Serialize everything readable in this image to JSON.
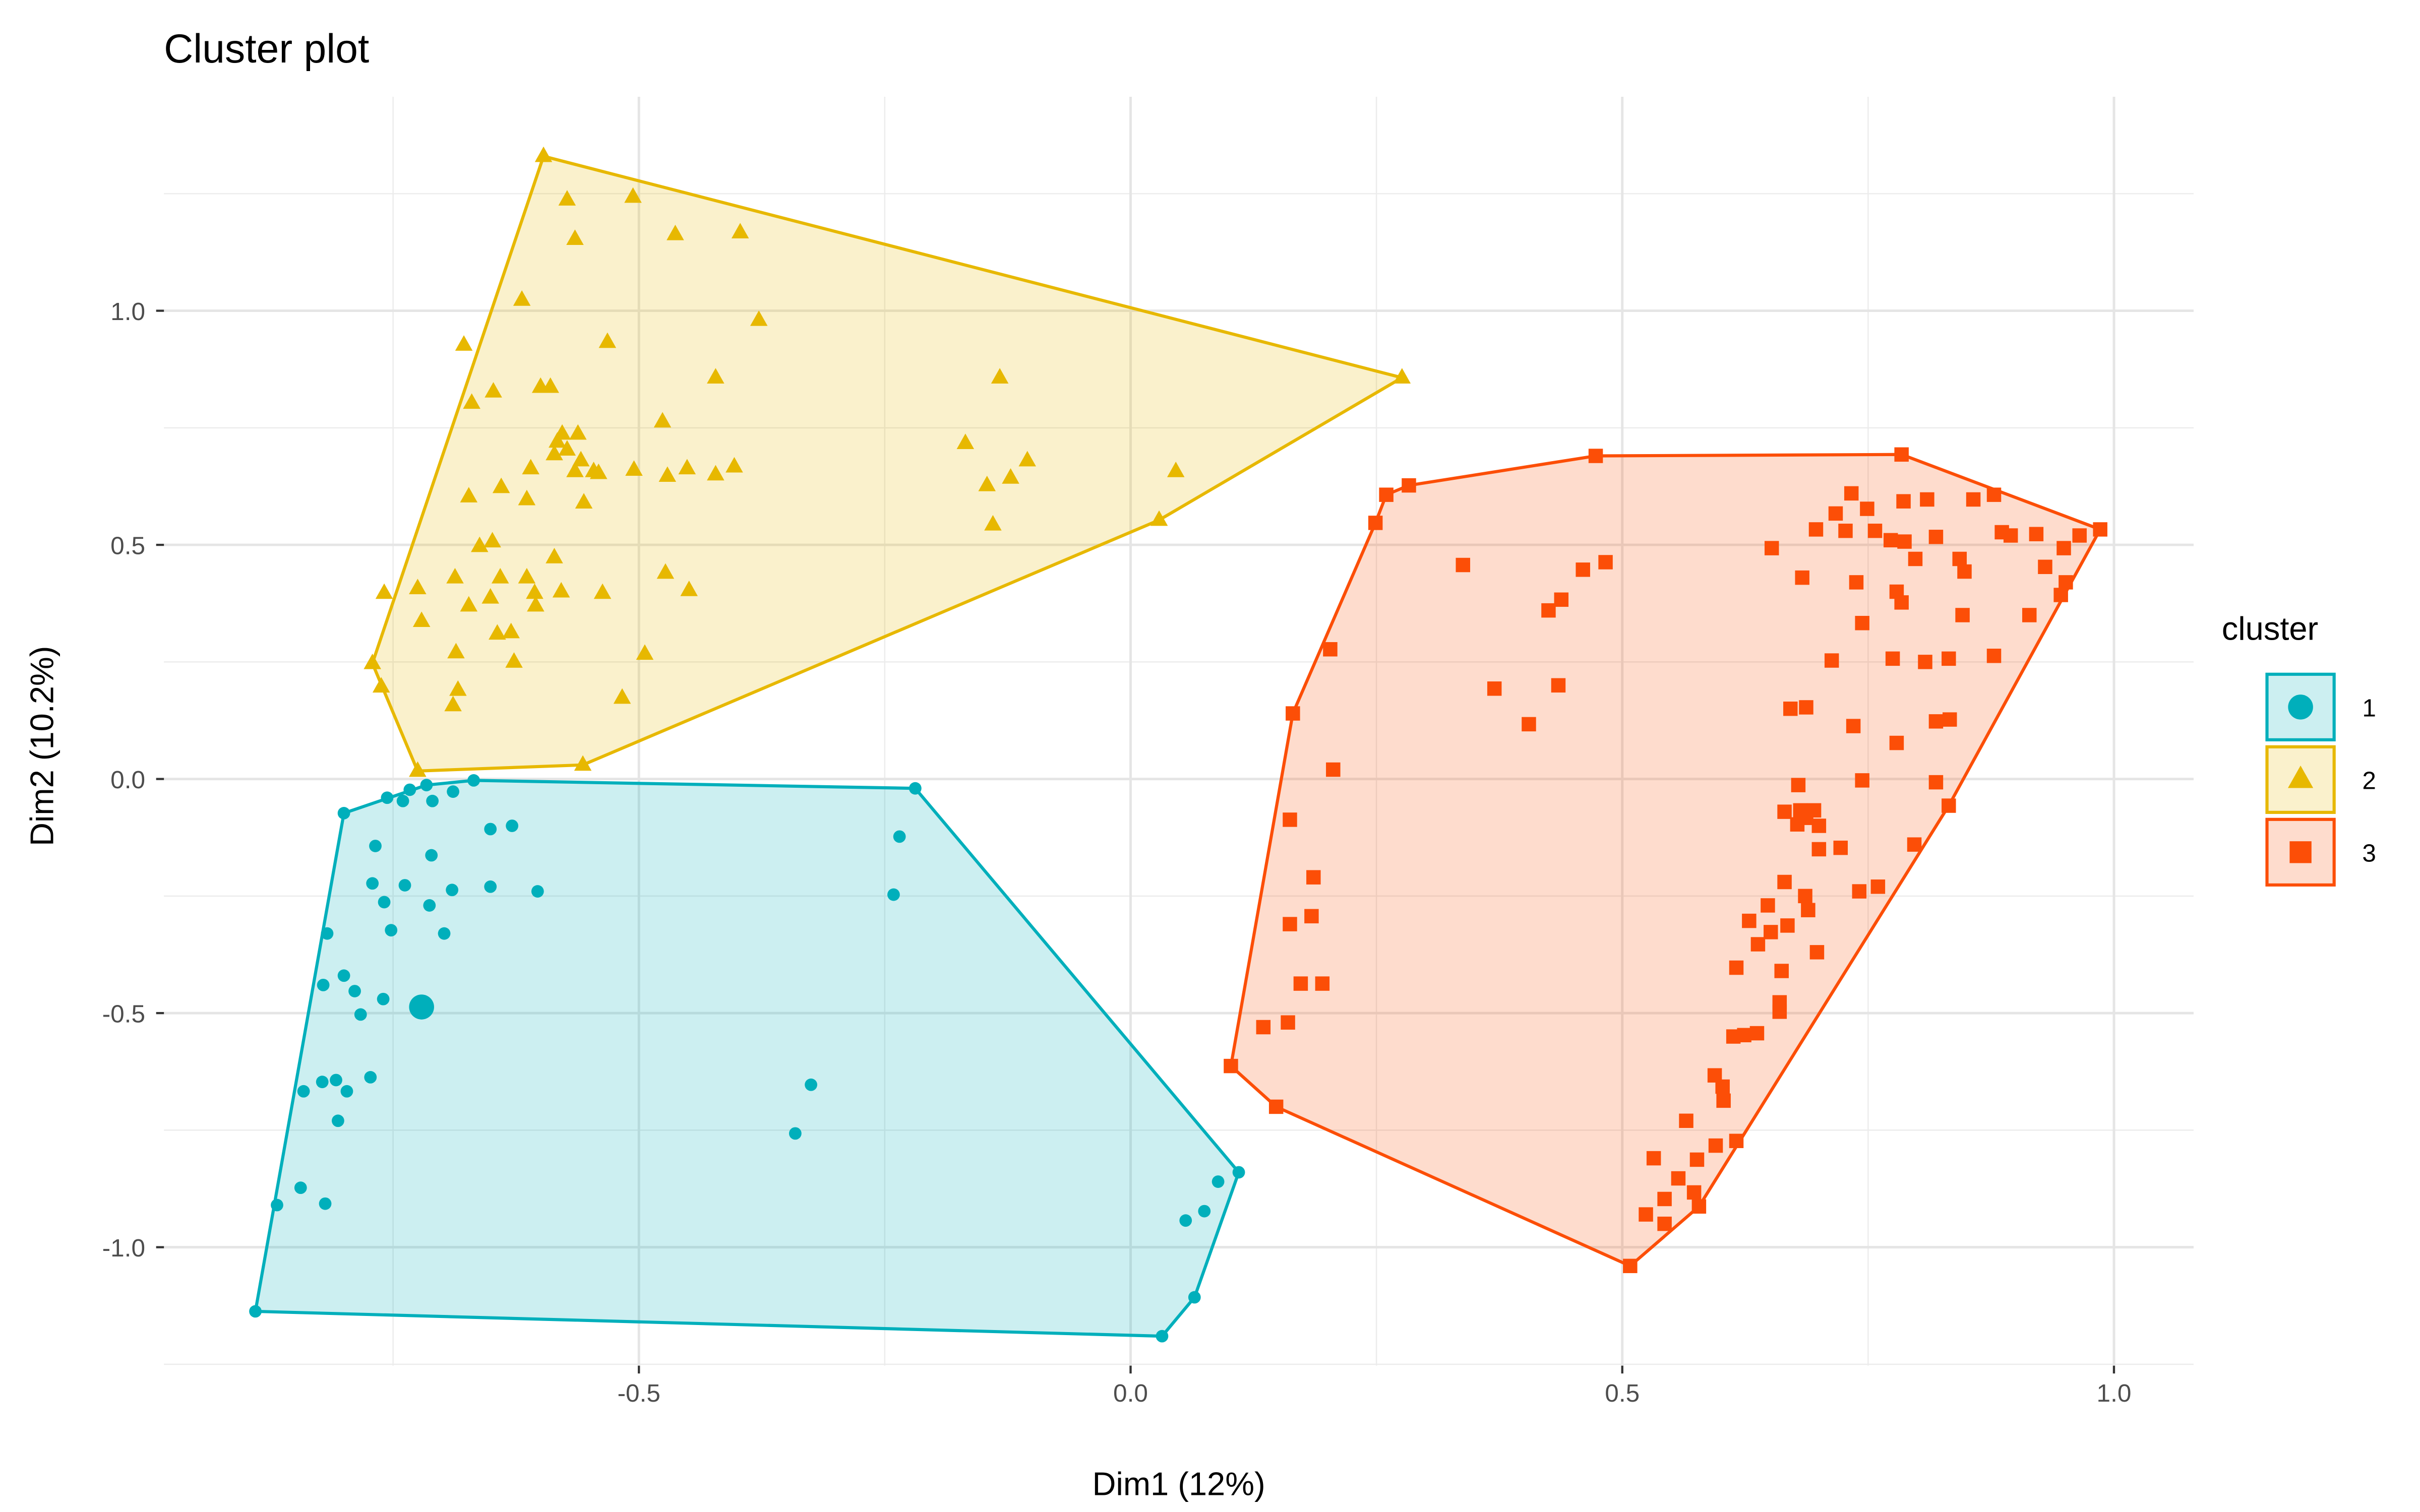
{
  "chart_data": {
    "type": "scatter",
    "title": "Cluster plot",
    "xlabel": "Dim1 (12%)",
    "ylabel": "Dim2 (10.2%)",
    "xlim": [
      -0.983,
      1.081
    ],
    "ylim": [
      -1.253,
      1.457
    ],
    "x_ticks": [
      {
        "value": -0.5,
        "label": "-0.5"
      },
      {
        "value": 0.0,
        "label": "0.0"
      },
      {
        "value": 0.5,
        "label": "0.5"
      },
      {
        "value": 1.0,
        "label": "1.0"
      }
    ],
    "y_ticks": [
      {
        "value": 1.0,
        "label": "1.0"
      },
      {
        "value": 0.5,
        "label": "0.5"
      },
      {
        "value": 0.0,
        "label": "0.0"
      },
      {
        "value": -0.5,
        "label": "-0.5"
      },
      {
        "value": -1.0,
        "label": "-1.0"
      }
    ],
    "grid": true,
    "legend": {
      "title": "cluster",
      "position": "right"
    },
    "series": [
      {
        "name": "1",
        "shape": "circle",
        "color": "#00AFBB",
        "medoid": [
          -0.721,
          -0.487
        ],
        "hull": [
          [
            -0.89,
            -1.137
          ],
          [
            -0.8,
            -0.073
          ],
          [
            -0.716,
            -0.013
          ],
          [
            -0.668,
            -0.003
          ],
          [
            -0.219,
            -0.02
          ],
          [
            0.11,
            -0.84
          ],
          [
            0.065,
            -1.107
          ],
          [
            0.032,
            -1.19
          ]
        ],
        "points": [
          [
            -0.89,
            -1.137
          ],
          [
            -0.8,
            -0.073
          ],
          [
            -0.716,
            -0.013
          ],
          [
            -0.668,
            -0.003
          ],
          [
            -0.219,
            -0.02
          ],
          [
            0.11,
            -0.84
          ],
          [
            0.065,
            -1.107
          ],
          [
            0.032,
            -1.19
          ],
          [
            -0.756,
            -0.04
          ],
          [
            -0.733,
            -0.023
          ],
          [
            -0.74,
            -0.047
          ],
          [
            -0.71,
            -0.047
          ],
          [
            -0.689,
            -0.027
          ],
          [
            -0.768,
            -0.143
          ],
          [
            -0.711,
            -0.163
          ],
          [
            -0.651,
            -0.107
          ],
          [
            -0.629,
            -0.1
          ],
          [
            -0.771,
            -0.223
          ],
          [
            -0.738,
            -0.227
          ],
          [
            -0.759,
            -0.263
          ],
          [
            -0.69,
            -0.237
          ],
          [
            -0.651,
            -0.23
          ],
          [
            -0.603,
            -0.24
          ],
          [
            -0.713,
            -0.27
          ],
          [
            -0.698,
            -0.33
          ],
          [
            -0.817,
            -0.33
          ],
          [
            -0.752,
            -0.323
          ],
          [
            -0.8,
            -0.42
          ],
          [
            -0.821,
            -0.44
          ],
          [
            -0.789,
            -0.453
          ],
          [
            -0.76,
            -0.47
          ],
          [
            -0.783,
            -0.503
          ],
          [
            -0.808,
            -0.643
          ],
          [
            -0.773,
            -0.637
          ],
          [
            -0.797,
            -0.667
          ],
          [
            -0.822,
            -0.647
          ],
          [
            -0.841,
            -0.667
          ],
          [
            -0.806,
            -0.73
          ],
          [
            -0.844,
            -0.873
          ],
          [
            -0.819,
            -0.907
          ],
          [
            -0.868,
            -0.91
          ],
          [
            -0.241,
            -0.247
          ],
          [
            -0.235,
            -0.123
          ],
          [
            -0.325,
            -0.653
          ],
          [
            -0.341,
            -0.757
          ],
          [
            0.089,
            -0.86
          ],
          [
            0.075,
            -0.923
          ],
          [
            0.056,
            -0.943
          ]
        ]
      },
      {
        "name": "2",
        "shape": "triangle",
        "color": "#E7B800",
        "hull": [
          [
            -0.771,
            0.247
          ],
          [
            -0.597,
            1.33
          ],
          [
            0.276,
            0.857
          ],
          [
            0.029,
            0.553
          ],
          [
            -0.557,
            0.03
          ],
          [
            -0.725,
            0.017
          ]
        ],
        "points": [
          [
            -0.771,
            0.247
          ],
          [
            -0.597,
            1.33
          ],
          [
            0.276,
            0.857
          ],
          [
            0.029,
            0.553
          ],
          [
            -0.557,
            0.03
          ],
          [
            -0.725,
            0.017
          ],
          [
            -0.573,
            1.237
          ],
          [
            -0.506,
            1.243
          ],
          [
            -0.565,
            1.153
          ],
          [
            -0.463,
            1.163
          ],
          [
            -0.397,
            1.167
          ],
          [
            -0.619,
            1.023
          ],
          [
            -0.378,
            0.98
          ],
          [
            -0.532,
            0.933
          ],
          [
            -0.678,
            0.927
          ],
          [
            -0.133,
            0.857
          ],
          [
            -0.422,
            0.857
          ],
          [
            -0.6,
            0.837
          ],
          [
            -0.648,
            0.827
          ],
          [
            -0.59,
            0.837
          ],
          [
            -0.67,
            0.803
          ],
          [
            -0.476,
            0.763
          ],
          [
            -0.578,
            0.737
          ],
          [
            -0.562,
            0.737
          ],
          [
            -0.583,
            0.72
          ],
          [
            -0.586,
            0.693
          ],
          [
            -0.573,
            0.703
          ],
          [
            -0.559,
            0.68
          ],
          [
            -0.61,
            0.663
          ],
          [
            -0.546,
            0.657
          ],
          [
            -0.505,
            0.66
          ],
          [
            -0.565,
            0.657
          ],
          [
            -0.541,
            0.653
          ],
          [
            -0.451,
            0.663
          ],
          [
            -0.422,
            0.65
          ],
          [
            -0.403,
            0.667
          ],
          [
            -0.168,
            0.717
          ],
          [
            -0.105,
            0.68
          ],
          [
            -0.122,
            0.643
          ],
          [
            -0.146,
            0.627
          ],
          [
            0.046,
            0.657
          ],
          [
            -0.471,
            0.647
          ],
          [
            -0.673,
            0.603
          ],
          [
            -0.64,
            0.623
          ],
          [
            -0.614,
            0.597
          ],
          [
            -0.556,
            0.59
          ],
          [
            -0.14,
            0.543
          ],
          [
            -0.662,
            0.497
          ],
          [
            -0.649,
            0.507
          ],
          [
            -0.687,
            0.43
          ],
          [
            -0.641,
            0.43
          ],
          [
            -0.586,
            0.473
          ],
          [
            -0.614,
            0.43
          ],
          [
            -0.605,
            0.37
          ],
          [
            -0.537,
            0.397
          ],
          [
            -0.673,
            0.37
          ],
          [
            -0.449,
            0.403
          ],
          [
            -0.651,
            0.387
          ],
          [
            -0.473,
            0.44
          ],
          [
            -0.759,
            0.397
          ],
          [
            -0.725,
            0.407
          ],
          [
            -0.721,
            0.337
          ],
          [
            -0.606,
            0.397
          ],
          [
            -0.579,
            0.4
          ],
          [
            -0.762,
            0.197
          ],
          [
            -0.686,
            0.27
          ],
          [
            -0.684,
            0.19
          ],
          [
            -0.627,
            0.25
          ],
          [
            -0.63,
            0.313
          ],
          [
            -0.517,
            0.173
          ],
          [
            -0.494,
            0.267
          ],
          [
            -0.689,
            0.157
          ],
          [
            -0.644,
            0.31
          ]
        ]
      },
      {
        "name": "3",
        "shape": "square",
        "color": "#FC4E07",
        "hull": [
          [
            0.102,
            -0.613
          ],
          [
            0.148,
            -0.7
          ],
          [
            0.508,
            -1.04
          ],
          [
            0.578,
            -0.913
          ],
          [
            0.832,
            -0.057
          ],
          [
            0.986,
            0.533
          ],
          [
            0.784,
            0.693
          ],
          [
            0.473,
            0.69
          ],
          [
            0.283,
            0.627
          ],
          [
            0.26,
            0.607
          ],
          [
            0.249,
            0.547
          ],
          [
            0.165,
            0.14
          ]
        ],
        "points": [
          [
            0.102,
            -0.613
          ],
          [
            0.148,
            -0.7
          ],
          [
            0.508,
            -1.04
          ],
          [
            0.578,
            -0.913
          ],
          [
            0.832,
            -0.057
          ],
          [
            0.986,
            0.533
          ],
          [
            0.784,
            0.693
          ],
          [
            0.473,
            0.69
          ],
          [
            0.283,
            0.627
          ],
          [
            0.26,
            0.607
          ],
          [
            0.249,
            0.547
          ],
          [
            0.165,
            0.14
          ],
          [
            0.338,
            0.457
          ],
          [
            0.438,
            0.383
          ],
          [
            0.46,
            0.447
          ],
          [
            0.425,
            0.36
          ],
          [
            0.483,
            0.463
          ],
          [
            0.37,
            0.193
          ],
          [
            0.405,
            0.117
          ],
          [
            0.435,
            0.2
          ],
          [
            0.203,
            0.277
          ],
          [
            0.206,
            0.02
          ],
          [
            0.162,
            -0.087
          ],
          [
            0.186,
            -0.21
          ],
          [
            0.184,
            -0.293
          ],
          [
            0.162,
            -0.31
          ],
          [
            0.173,
            -0.437
          ],
          [
            0.195,
            -0.437
          ],
          [
            0.135,
            -0.53
          ],
          [
            0.16,
            -0.52
          ],
          [
            0.652,
            0.493
          ],
          [
            0.697,
            0.533
          ],
          [
            0.717,
            0.567
          ],
          [
            0.733,
            0.61
          ],
          [
            0.749,
            0.577
          ],
          [
            0.757,
            0.53
          ],
          [
            0.727,
            0.53
          ],
          [
            0.773,
            0.51
          ],
          [
            0.786,
            0.593
          ],
          [
            0.81,
            0.597
          ],
          [
            0.819,
            0.517
          ],
          [
            0.787,
            0.507
          ],
          [
            0.843,
            0.47
          ],
          [
            0.857,
            0.597
          ],
          [
            0.878,
            0.607
          ],
          [
            0.886,
            0.527
          ],
          [
            0.895,
            0.52
          ],
          [
            0.921,
            0.523
          ],
          [
            0.949,
            0.493
          ],
          [
            0.965,
            0.52
          ],
          [
            0.93,
            0.453
          ],
          [
            0.951,
            0.42
          ],
          [
            0.946,
            0.393
          ],
          [
            0.914,
            0.35
          ],
          [
            0.878,
            0.263
          ],
          [
            0.848,
            0.443
          ],
          [
            0.798,
            0.47
          ],
          [
            0.779,
            0.4
          ],
          [
            0.784,
            0.377
          ],
          [
            0.738,
            0.42
          ],
          [
            0.683,
            0.43
          ],
          [
            0.744,
            0.333
          ],
          [
            0.713,
            0.253
          ],
          [
            0.808,
            0.25
          ],
          [
            0.775,
            0.257
          ],
          [
            0.832,
            0.257
          ],
          [
            0.846,
            0.35
          ],
          [
            0.671,
            0.15
          ],
          [
            0.687,
            0.153
          ],
          [
            0.735,
            0.113
          ],
          [
            0.779,
            0.077
          ],
          [
            0.819,
            0.123
          ],
          [
            0.833,
            0.127
          ],
          [
            0.744,
            -0.003
          ],
          [
            0.819,
            -0.007
          ],
          [
            0.679,
            -0.013
          ],
          [
            0.665,
            -0.07
          ],
          [
            0.681,
            -0.067
          ],
          [
            0.695,
            -0.067
          ],
          [
            0.687,
            -0.083
          ],
          [
            0.678,
            -0.097
          ],
          [
            0.7,
            -0.1
          ],
          [
            0.722,
            -0.147
          ],
          [
            0.7,
            -0.15
          ],
          [
            0.797,
            -0.14
          ],
          [
            0.76,
            -0.23
          ],
          [
            0.741,
            -0.24
          ],
          [
            0.665,
            -0.22
          ],
          [
            0.686,
            -0.25
          ],
          [
            0.689,
            -0.28
          ],
          [
            0.648,
            -0.27
          ],
          [
            0.629,
            -0.303
          ],
          [
            0.651,
            -0.327
          ],
          [
            0.668,
            -0.313
          ],
          [
            0.698,
            -0.37
          ],
          [
            0.638,
            -0.353
          ],
          [
            0.616,
            -0.403
          ],
          [
            0.662,
            -0.41
          ],
          [
            0.66,
            -0.477
          ],
          [
            0.66,
            -0.497
          ],
          [
            0.637,
            -0.543
          ],
          [
            0.624,
            -0.547
          ],
          [
            0.613,
            -0.55
          ],
          [
            0.594,
            -0.633
          ],
          [
            0.602,
            -0.657
          ],
          [
            0.603,
            -0.687
          ],
          [
            0.565,
            -0.73
          ],
          [
            0.616,
            -0.773
          ],
          [
            0.595,
            -0.783
          ],
          [
            0.576,
            -0.813
          ],
          [
            0.532,
            -0.81
          ],
          [
            0.557,
            -0.853
          ],
          [
            0.543,
            -0.897
          ],
          [
            0.573,
            -0.883
          ],
          [
            0.524,
            -0.93
          ],
          [
            0.543,
            -0.95
          ]
        ]
      }
    ]
  }
}
